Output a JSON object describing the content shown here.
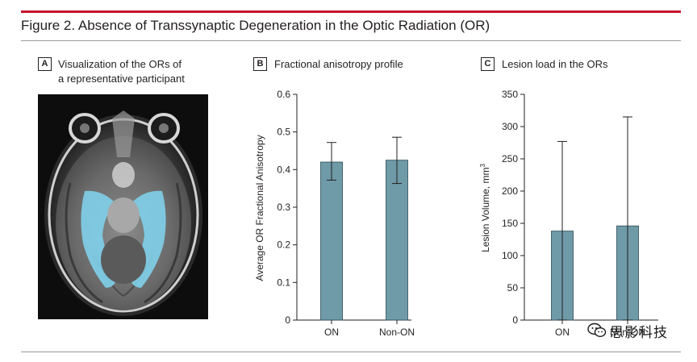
{
  "figure": {
    "title": "Figure 2. Absence of Transsynaptic Degeneration in the Optic Radiation (OR)"
  },
  "panels": {
    "a": {
      "letter": "A",
      "title_line1": "Visualization of the ORs of",
      "title_line2": "a representative participant"
    },
    "b": {
      "letter": "B",
      "title": "Fractional anisotropy profile"
    },
    "c": {
      "letter": "C",
      "title": "Lesion load in the ORs"
    }
  },
  "colors": {
    "bar": "#6f9aa8",
    "bar_edge": "#2b4a55",
    "accent_rule": "#c8102e",
    "overlay": "#7fd0ea"
  },
  "chart_data": [
    {
      "type": "bar",
      "categories": [
        "ON",
        "Non-ON"
      ],
      "values": [
        0.42,
        0.425
      ],
      "errors": [
        {
          "low": 0.372,
          "high": 0.472
        },
        {
          "low": 0.363,
          "high": 0.486
        }
      ],
      "ylabel": "Average OR Fractional Anisotropy",
      "ylim": [
        0,
        0.6
      ],
      "yticks": [
        "0",
        "0.1",
        "0.2",
        "0.3",
        "0.4",
        "0.5",
        "0.6"
      ],
      "grid": false
    },
    {
      "type": "bar",
      "categories": [
        "ON",
        "Non-ON"
      ],
      "values": [
        138,
        146
      ],
      "errors": [
        {
          "low": 0,
          "high": 277
        },
        {
          "low": 0,
          "high": 315
        }
      ],
      "ylabel_main": "Lesion Volume, mm",
      "ylabel_sup": "3",
      "ylim": [
        0,
        350
      ],
      "yticks": [
        "0",
        "50",
        "100",
        "150",
        "200",
        "250",
        "300",
        "350"
      ],
      "grid": false
    }
  ],
  "watermark": {
    "icon": "wechat-icon",
    "text": "思影科技"
  }
}
